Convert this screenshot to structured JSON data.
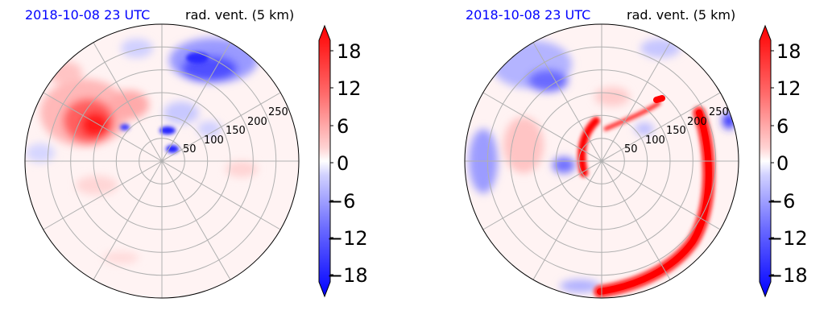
{
  "chart_data": [
    {
      "type": "heatmap",
      "title_left": "2018-10-08 23 UTC",
      "title_right": "rad. vent. (5 km)",
      "projection": "polar",
      "radial_ticks": [
        "50",
        "100",
        "150",
        "200",
        "250"
      ],
      "grid": true,
      "colormap": "bwr",
      "colorbar": {
        "ticks": [
          "18",
          "12",
          "6",
          "0",
          "−6",
          "−12",
          "−18"
        ],
        "range": [
          -20,
          20
        ],
        "extend": "both"
      },
      "features": [
        {
          "sign": "positive",
          "desc": "broad red area northwest of center",
          "az": 300,
          "r": 135
        },
        {
          "sign": "negative",
          "desc": "blue patches north-northeast",
          "az": 25,
          "r": 200
        },
        {
          "sign": "negative",
          "desc": "small blue cells near center east",
          "az": 75,
          "r": 50
        }
      ]
    },
    {
      "type": "heatmap",
      "title_left": "2018-10-08 23 UTC",
      "title_right": "rad. vent. (5 km)",
      "projection": "polar",
      "radial_ticks": [
        "50",
        "100",
        "150",
        "200",
        "250"
      ],
      "grid": true,
      "colormap": "bwr",
      "colorbar": {
        "ticks": [
          "18",
          "12",
          "6",
          "0",
          "−6",
          "−12",
          "−18"
        ],
        "range": [
          -20,
          20
        ],
        "extend": "both"
      },
      "features": [
        {
          "sign": "positive",
          "desc": "strong red spiral band sweeping from east to south",
          "az": 140,
          "r": 190
        },
        {
          "sign": "positive",
          "desc": "red curved band near center",
          "az": 320,
          "r": 45
        },
        {
          "sign": "negative",
          "desc": "blue patches northwest and west",
          "az": 300,
          "r": 190
        }
      ]
    }
  ],
  "colors": {
    "positive_strong": "#ff0000",
    "positive_light": "#ffb0b0",
    "negative_strong": "#0000ff",
    "negative_light": "#b0b0ff",
    "grid": "#b0b0b0"
  }
}
